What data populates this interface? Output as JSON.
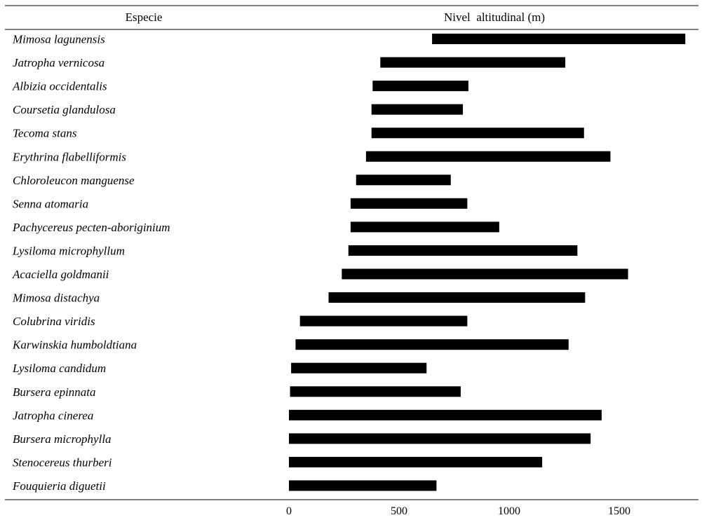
{
  "chart_data": {
    "type": "bar",
    "orientation": "horizontal-range",
    "column_header_species": "Especie",
    "column_header_range": "Nivel  altitudinal (m)",
    "x_ticks": [
      0,
      500,
      1000,
      1500
    ],
    "xlim": [
      0,
      1820
    ],
    "bar_color": "#000000",
    "series": [
      {
        "name": "Mimosa lagunensis",
        "start": 650,
        "end": 1800
      },
      {
        "name": "Jatropha vernicosa",
        "start": 415,
        "end": 1255
      },
      {
        "name": "Albizia occidentalis",
        "start": 380,
        "end": 815
      },
      {
        "name": "Coursetia glandulosa",
        "start": 375,
        "end": 790
      },
      {
        "name": "Tecoma stans",
        "start": 375,
        "end": 1340
      },
      {
        "name": "Erythrina flabelliformis",
        "start": 350,
        "end": 1460
      },
      {
        "name": "Chloroleucon manguense",
        "start": 305,
        "end": 735
      },
      {
        "name": "Senna atomaria",
        "start": 280,
        "end": 810
      },
      {
        "name": "Pachycereus pecten-aboriginium",
        "start": 280,
        "end": 955
      },
      {
        "name": "Lysiloma microphyllum",
        "start": 270,
        "end": 1310
      },
      {
        "name": "Acaciella goldmanii",
        "start": 240,
        "end": 1540
      },
      {
        "name": "Mimosa distachya",
        "start": 180,
        "end": 1345
      },
      {
        "name": "Colubrina viridis",
        "start": 50,
        "end": 810
      },
      {
        "name": "Karwinskia humboldtiana",
        "start": 30,
        "end": 1270
      },
      {
        "name": "Lysiloma candidum",
        "start": 10,
        "end": 625
      },
      {
        "name": "Bursera epinnata",
        "start": 5,
        "end": 780
      },
      {
        "name": "Jatropha cinerea",
        "start": 0,
        "end": 1420
      },
      {
        "name": "Bursera microphylla",
        "start": 0,
        "end": 1370
      },
      {
        "name": "Stenocereus thurberi",
        "start": 0,
        "end": 1150
      },
      {
        "name": "Fouquieria diguetii",
        "start": 0,
        "end": 670
      }
    ]
  }
}
